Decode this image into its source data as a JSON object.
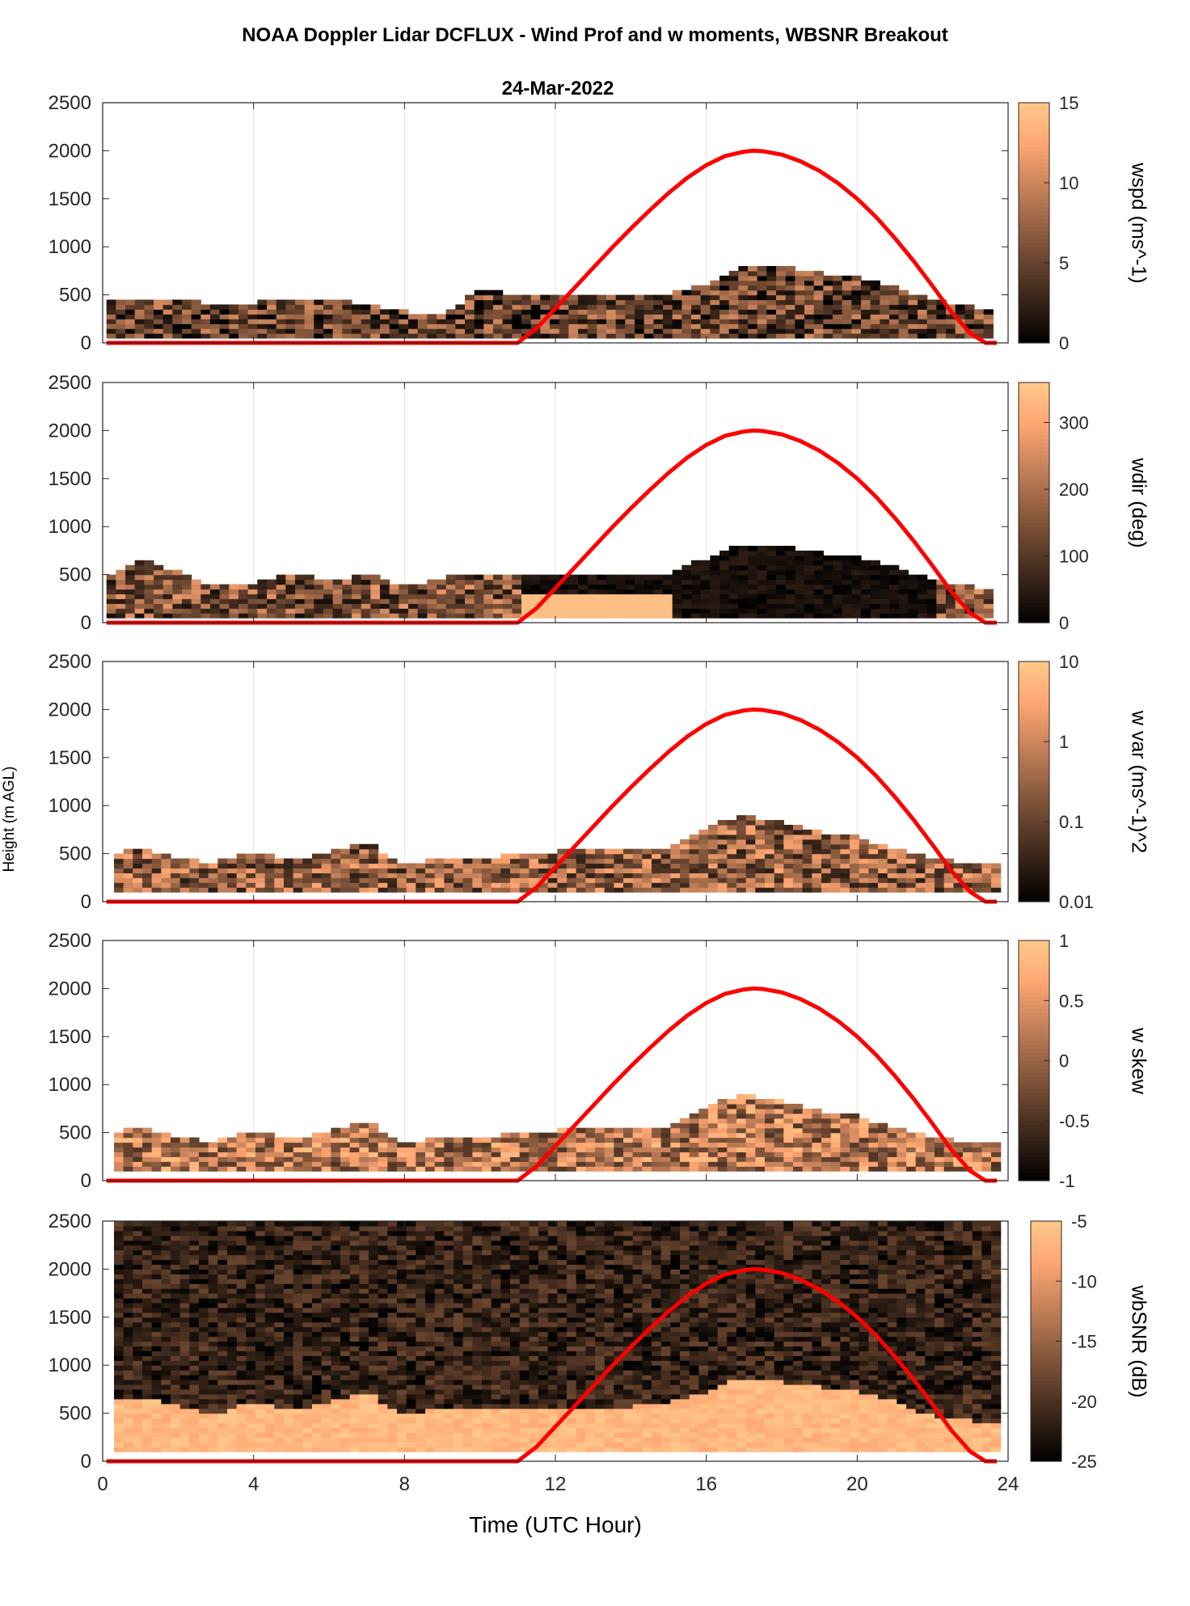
{
  "title": "NOAA Doppler Lidar DCFLUX - Wind Prof and w moments, WBSNR Breakout",
  "date": "24-Mar-2022",
  "ylabel_common": "Height (m AGL)",
  "xlabel": "Time (UTC Hour)",
  "colors": {
    "sun_curve": "#ff0000",
    "grid": "#e3e3e3",
    "cmap_low": "#000000",
    "cmap_high": "#ffc88a"
  },
  "chart_data": [
    {
      "type": "heatmap",
      "variable": "wspd",
      "colorbar_label": "wspd (ms^-1)",
      "xlim": [
        0,
        24
      ],
      "ylim": [
        0,
        2500
      ],
      "yticks": [
        0,
        500,
        1000,
        1500,
        2000,
        2500
      ],
      "clim": [
        0,
        15
      ],
      "cbar_ticks": [
        0,
        5,
        10,
        15
      ],
      "top_height_profile": {
        "x": [
          0.1,
          1,
          2,
          3,
          4,
          5,
          6,
          7,
          8,
          9,
          10,
          11,
          12,
          13,
          14,
          15,
          16,
          17,
          18,
          19,
          20,
          21,
          22,
          23,
          23.6
        ],
        "y": [
          450,
          450,
          420,
          380,
          400,
          450,
          420,
          380,
          300,
          280,
          520,
          480,
          450,
          500,
          480,
          500,
          600,
          800,
          780,
          700,
          650,
          550,
          430,
          350,
          340
        ]
      },
      "typical_value": 5
    },
    {
      "type": "heatmap",
      "variable": "wdir",
      "colorbar_label": "wdir (deg)",
      "xlim": [
        0,
        24
      ],
      "ylim": [
        0,
        2500
      ],
      "yticks": [
        0,
        500,
        1000,
        1500,
        2000,
        2500
      ],
      "clim": [
        0,
        360
      ],
      "cbar_ticks": [
        0,
        100,
        200,
        300
      ],
      "top_height_profile": {
        "x": [
          0.1,
          1,
          2,
          3,
          4,
          5,
          6,
          7,
          8,
          9,
          10,
          11,
          12,
          13,
          14,
          15,
          16,
          17,
          18,
          19,
          20,
          21,
          22,
          23,
          23.6
        ],
        "y": [
          450,
          650,
          500,
          350,
          400,
          500,
          400,
          500,
          350,
          450,
          500,
          500,
          450,
          500,
          480,
          500,
          650,
          800,
          780,
          700,
          650,
          550,
          430,
          350,
          340
        ]
      },
      "typical_value": 150
    },
    {
      "type": "heatmap",
      "variable": "w var",
      "colorbar_label": "w var (ms^-1)^2",
      "xlim": [
        0,
        24
      ],
      "ylim": [
        0,
        2500
      ],
      "yticks": [
        0,
        500,
        1000,
        1500,
        2000,
        2500
      ],
      "clim": [
        0.01,
        10
      ],
      "scale": "log",
      "cbar_ticks": [
        0.01,
        0.1,
        1,
        10
      ],
      "top_height_profile": {
        "x": [
          0.3,
          1,
          2,
          3,
          4,
          5,
          6,
          7,
          8,
          9,
          10,
          11,
          12,
          13,
          14,
          15,
          16,
          17,
          18,
          19,
          20,
          21,
          22,
          23,
          23.8
        ],
        "y": [
          480,
          550,
          420,
          380,
          500,
          420,
          480,
          600,
          350,
          450,
          400,
          500,
          500,
          550,
          500,
          550,
          750,
          880,
          800,
          700,
          650,
          520,
          430,
          380,
          370
        ]
      },
      "typical_value": 0.3
    },
    {
      "type": "heatmap",
      "variable": "w skew",
      "colorbar_label": "w skew",
      "xlim": [
        0,
        24
      ],
      "ylim": [
        0,
        2500
      ],
      "yticks": [
        0,
        500,
        1000,
        1500,
        2000,
        2500
      ],
      "clim": [
        -1,
        1
      ],
      "cbar_ticks": [
        -1,
        -0.5,
        0,
        0.5,
        1
      ],
      "top_height_profile": {
        "x": [
          0.3,
          1,
          2,
          3,
          4,
          5,
          6,
          7,
          8,
          9,
          10,
          11,
          12,
          13,
          14,
          15,
          16,
          17,
          18,
          19,
          20,
          21,
          22,
          23,
          23.8
        ],
        "y": [
          480,
          550,
          420,
          380,
          500,
          420,
          480,
          600,
          350,
          450,
          400,
          500,
          500,
          550,
          500,
          550,
          750,
          880,
          800,
          700,
          650,
          520,
          430,
          380,
          370
        ]
      },
      "typical_value": 0.2
    },
    {
      "type": "heatmap",
      "variable": "wbSNR",
      "colorbar_label": "wbSNR (dB)",
      "xlim": [
        0,
        24
      ],
      "ylim": [
        0,
        2500
      ],
      "yticks": [
        0,
        500,
        1000,
        1500,
        2000,
        2500
      ],
      "clim": [
        -25,
        -5
      ],
      "cbar_ticks": [
        -25,
        -20,
        -15,
        -10,
        -5
      ],
      "top_height_profile": {
        "x": [
          0.3,
          1,
          2,
          3,
          4,
          5,
          6,
          7,
          8,
          9,
          10,
          11,
          12,
          13,
          14,
          15,
          16,
          17,
          18,
          19,
          20,
          21,
          22,
          23,
          23.8
        ],
        "y": [
          600,
          650,
          550,
          450,
          600,
          500,
          600,
          700,
          450,
          550,
          500,
          550,
          550,
          550,
          550,
          600,
          700,
          850,
          800,
          750,
          700,
          600,
          450,
          400,
          380
        ]
      },
      "typical_value": -24
    }
  ],
  "sun_elevation_curve": {
    "color": "#ff0000",
    "x": [
      0.1,
      11,
      11.5,
      12,
      12.5,
      13,
      13.5,
      14,
      14.5,
      15,
      15.5,
      16,
      16.5,
      17,
      17.25,
      17.5,
      18,
      18.5,
      19,
      19.5,
      20,
      20.5,
      21,
      21.5,
      22,
      22.5,
      23,
      23.4,
      23.7
    ],
    "y": [
      0,
      0,
      150,
      360,
      570,
      780,
      990,
      1190,
      1380,
      1560,
      1720,
      1850,
      1945,
      1990,
      2000,
      1995,
      1960,
      1890,
      1790,
      1660,
      1500,
      1310,
      1090,
      850,
      590,
      320,
      100,
      0,
      0
    ]
  }
}
